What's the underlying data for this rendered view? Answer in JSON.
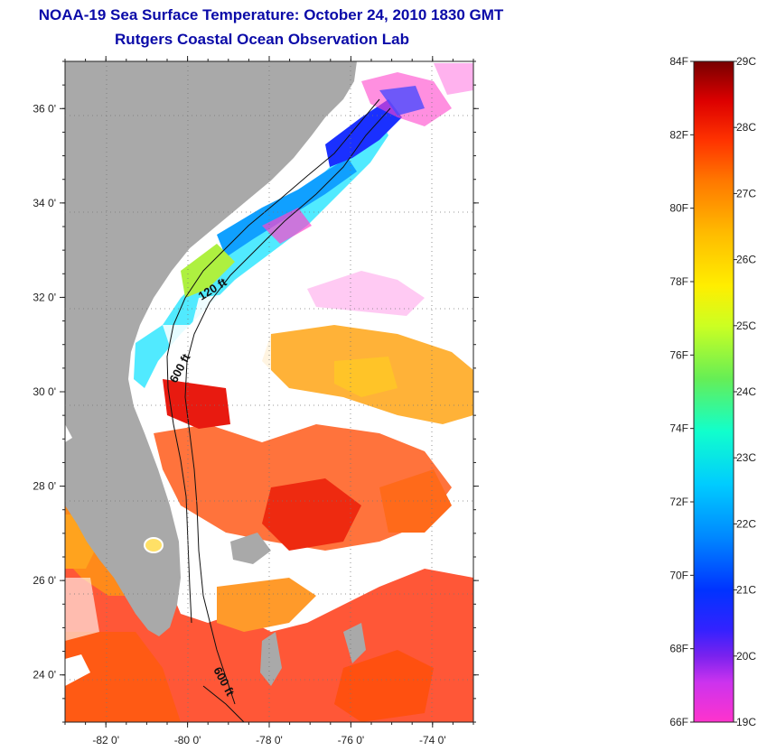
{
  "header": {
    "title": "NOAA-19 Sea Surface Temperature:  October 24, 2010 1830 GMT",
    "subtitle": "Rutgers Coastal Ocean Observation Lab"
  },
  "map": {
    "lon_range": [
      -83,
      -73
    ],
    "lat_range": [
      23,
      37
    ],
    "lat_ticks": [
      {
        "value": 36,
        "label": "36 0'"
      },
      {
        "value": 34,
        "label": "34 0'"
      },
      {
        "value": 32,
        "label": "32 0'"
      },
      {
        "value": 30,
        "label": "30 0'"
      },
      {
        "value": 28,
        "label": "28 0'"
      },
      {
        "value": 26,
        "label": "26 0'"
      },
      {
        "value": 24,
        "label": "24 0'"
      }
    ],
    "lon_ticks": [
      {
        "value": -82,
        "label": "-82 0'"
      },
      {
        "value": -80,
        "label": "-80 0'"
      },
      {
        "value": -78,
        "label": "-78 0'"
      },
      {
        "value": -76,
        "label": "-76 0'"
      },
      {
        "value": -74,
        "label": "-74 0'"
      }
    ],
    "contours": [
      "120 ft",
      "600 ft",
      "600 ft"
    ],
    "colors": {
      "land": "#a9a9a9",
      "cloud": "#ffffff"
    }
  },
  "colorbar": {
    "f_labels": [
      "84F",
      "82F",
      "80F",
      "78F",
      "76F",
      "74F",
      "72F",
      "70F",
      "68F",
      "66F"
    ],
    "c_labels": [
      "29C",
      "28C",
      "27C",
      "26C",
      "25C",
      "24C",
      "23C",
      "22C",
      "21C",
      "20C",
      "19C"
    ]
  }
}
